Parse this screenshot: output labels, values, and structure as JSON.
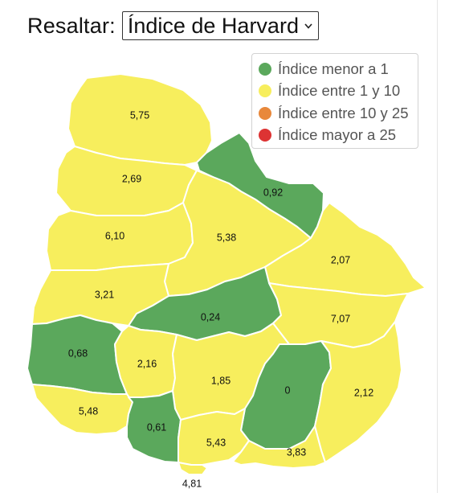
{
  "header": {
    "label": "Resaltar:",
    "selected": "Índice de Harvard"
  },
  "legend": [
    {
      "label": "Índice menor a 1",
      "color": "#5ba85c"
    },
    {
      "label": "Índice entre 1 y 10",
      "color": "#f7ee5d"
    },
    {
      "label": "Índice entre 10 y 25",
      "color": "#e8883b"
    },
    {
      "label": "Índice mayor a 25",
      "color": "#dd3333"
    }
  ],
  "departments": [
    {
      "id": "artigas",
      "value": "5,75",
      "category": "Índice entre 1 y 10"
    },
    {
      "id": "salto",
      "value": "2,69",
      "category": "Índice entre 1 y 10"
    },
    {
      "id": "rivera",
      "value": "0,92",
      "category": "Índice menor a 1"
    },
    {
      "id": "paysandu",
      "value": "6,10",
      "category": "Índice entre 1 y 10"
    },
    {
      "id": "tacuarembo",
      "value": "5,38",
      "category": "Índice entre 1 y 10"
    },
    {
      "id": "cerro-largo",
      "value": "2,07",
      "category": "Índice entre 1 y 10"
    },
    {
      "id": "rio-negro",
      "value": "3,21",
      "category": "Índice entre 1 y 10"
    },
    {
      "id": "durazno",
      "value": "0,24",
      "category": "Índice menor a 1"
    },
    {
      "id": "treinta-y-tres",
      "value": "7,07",
      "category": "Índice entre 1 y 10"
    },
    {
      "id": "soriano",
      "value": "0,68",
      "category": "Índice menor a 1"
    },
    {
      "id": "flores",
      "value": "2,16",
      "category": "Índice entre 1 y 10"
    },
    {
      "id": "florida",
      "value": "1,85",
      "category": "Índice entre 1 y 10"
    },
    {
      "id": "lavalleja",
      "value": "0",
      "category": "Índice menor a 1"
    },
    {
      "id": "rocha",
      "value": "2,12",
      "category": "Índice entre 1 y 10"
    },
    {
      "id": "colonia",
      "value": "5,48",
      "category": "Índice entre 1 y 10"
    },
    {
      "id": "san-jose",
      "value": "0,61",
      "category": "Índice menor a 1"
    },
    {
      "id": "canelones",
      "value": "5,43",
      "category": "Índice entre 1 y 10"
    },
    {
      "id": "maldonado",
      "value": "3,83",
      "category": "Índice entre 1 y 10"
    },
    {
      "id": "montevideo",
      "value": "4,81",
      "category": "Índice entre 1 y 10"
    }
  ]
}
